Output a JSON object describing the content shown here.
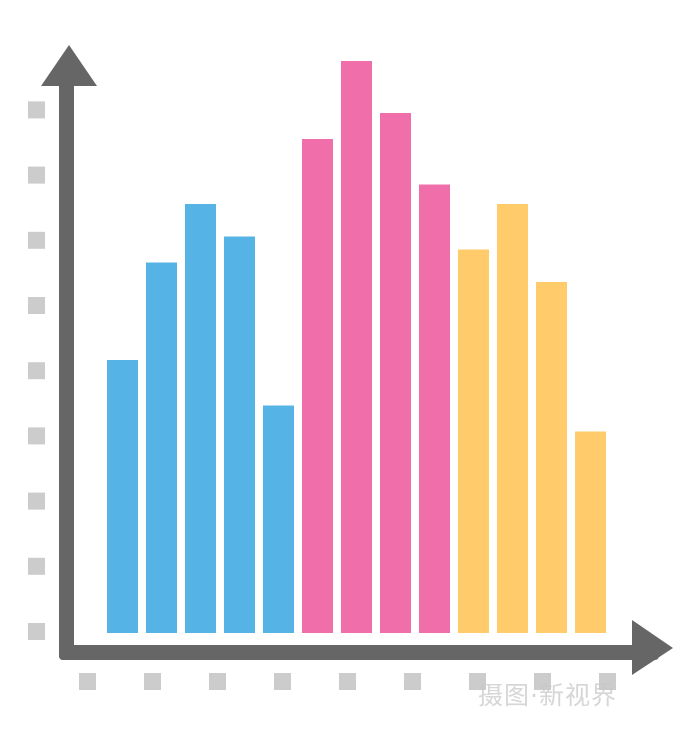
{
  "chart_data": {
    "type": "bar",
    "title": "",
    "xlabel": "",
    "ylabel": "",
    "ylim": [
      0,
      9
    ],
    "grid": false,
    "y_tick_count": 9,
    "x_tick_count": 9,
    "series": [
      {
        "color": "#56B3E6",
        "values": [
          4.2,
          5.7,
          6.6,
          6.1,
          3.5
        ]
      },
      {
        "color": "#F06EAA",
        "values": [
          7.6,
          8.8,
          8.0,
          6.9
        ]
      },
      {
        "color": "#FFCB6B",
        "values": [
          5.9,
          6.6,
          5.4,
          3.1
        ]
      }
    ],
    "axis_color": "#666666",
    "tick_marker_color": "#CCCCCC"
  },
  "watermark": "摄图·新视界"
}
